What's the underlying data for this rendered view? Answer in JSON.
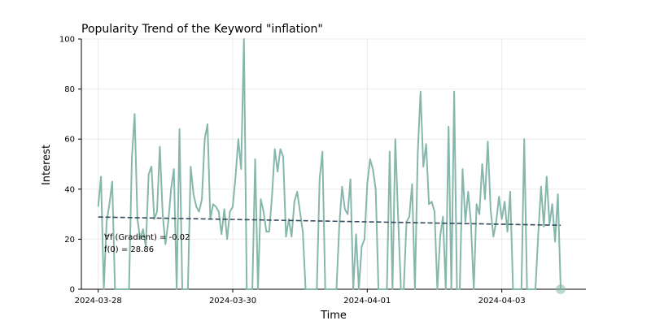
{
  "chart_data": {
    "type": "line",
    "title": "Popularity Trend of the Keyword \"inflation\"",
    "xlabel": "Time",
    "ylabel": "Interest",
    "xlim": [
      "2024-03-27T18:00",
      "2024-04-04T06:00"
    ],
    "ylim": [
      0,
      100
    ],
    "y_ticks": [
      0,
      20,
      40,
      60,
      80,
      100
    ],
    "x_ticks": [
      "2024-03-28",
      "2024-03-30",
      "2024-04-01",
      "2024-04-03"
    ],
    "grid": true,
    "series": [
      {
        "x_start": "2024-03-28T00:00",
        "x_step_hours": 1,
        "color": "#86b7ab",
        "values": [
          33,
          45,
          0,
          27,
          34,
          43,
          0,
          0,
          0,
          0,
          0,
          0,
          52,
          70,
          28,
          20,
          24,
          17,
          46,
          49,
          28,
          31,
          57,
          30,
          18,
          27,
          40,
          48,
          0,
          64,
          0,
          0,
          0,
          49,
          38,
          33,
          31,
          36,
          60,
          66,
          28,
          34,
          33,
          31,
          22,
          32,
          20,
          31,
          33,
          45,
          60,
          48,
          100,
          0,
          0,
          0,
          52,
          0,
          36,
          31,
          23,
          23,
          37,
          56,
          47,
          56,
          53,
          21,
          28,
          21,
          35,
          39,
          31,
          23,
          0,
          0,
          0,
          0,
          0,
          44,
          55,
          0,
          0,
          0,
          0,
          0,
          25,
          41,
          32,
          30,
          44,
          0,
          22,
          0,
          17,
          20,
          42,
          52,
          48,
          40,
          0,
          0,
          0,
          0,
          55,
          0,
          60,
          29,
          0,
          0,
          27,
          29,
          42,
          0,
          54,
          79,
          49,
          58,
          34,
          35,
          31,
          0,
          21,
          29,
          0,
          65,
          0,
          79,
          0,
          0,
          48,
          27,
          39,
          26,
          0,
          34,
          30,
          50,
          36,
          59,
          32,
          21,
          27,
          37,
          28,
          35,
          23,
          39,
          0,
          0,
          0,
          0,
          60,
          0,
          0,
          0,
          0,
          22,
          41,
          25,
          45,
          26,
          34,
          19,
          38,
          0
        ]
      },
      {
        "type": "trend",
        "color": "#34495e",
        "dashed": true,
        "intercept": 28.86,
        "gradient": -0.02
      }
    ],
    "annotations": [
      "∀f (Gradient) = -0.02",
      "f(0) = 28.86"
    ]
  }
}
